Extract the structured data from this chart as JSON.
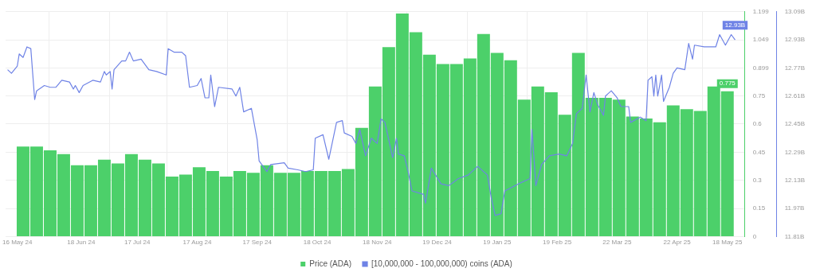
{
  "chart_data": {
    "type": "bar",
    "xlim": [
      "2024-05-10",
      "2025-05-27"
    ],
    "xticks": [
      {
        "value": "2024-05-16",
        "label": "16 May 24"
      },
      {
        "value": "2024-06-18",
        "label": "18 Jun 24"
      },
      {
        "value": "2024-07-17",
        "label": "17 Jul 24"
      },
      {
        "value": "2024-08-17",
        "label": "17 Aug 24"
      },
      {
        "value": "2024-09-17",
        "label": "17 Sep 24"
      },
      {
        "value": "2024-10-18",
        "label": "18 Oct 24"
      },
      {
        "value": "2024-11-18",
        "label": "18 Nov 24"
      },
      {
        "value": "2024-12-19",
        "label": "19 Dec 24"
      },
      {
        "value": "2025-01-19",
        "label": "19 Jan 25"
      },
      {
        "value": "2025-02-19",
        "label": "19 Feb 25"
      },
      {
        "value": "2025-03-22",
        "label": "22 Mar 25"
      },
      {
        "value": "2025-04-22",
        "label": "22 Apr 25"
      },
      {
        "value": "2025-05-18",
        "label": "18 May 25"
      }
    ],
    "ylim": [
      0,
      1.199
    ],
    "yticks": [
      0,
      0.15,
      0.3,
      0.45,
      0.6,
      0.75,
      0.899,
      1.049,
      1.199
    ],
    "y2lim": [
      11.81,
      13.09
    ],
    "y2ticks": [
      {
        "value": 11.81,
        "label": "11.81B"
      },
      {
        "value": 11.97,
        "label": "11.97B"
      },
      {
        "value": 12.13,
        "label": "12.13B"
      },
      {
        "value": 12.29,
        "label": "12.29B"
      },
      {
        "value": 12.45,
        "label": "12.45B"
      },
      {
        "value": 12.61,
        "label": "12.61B"
      },
      {
        "value": 12.77,
        "label": "12.77B"
      },
      {
        "value": 12.93,
        "label": "12.93B"
      },
      {
        "value": 13.09,
        "label": "13.09B"
      }
    ],
    "grid": true,
    "legend": "bottom",
    "series": [
      {
        "name": "Price (ADA)",
        "color": "#4cd06a",
        "x": [
          "2024-05-19",
          "2024-05-26",
          "2024-06-02",
          "2024-06-09",
          "2024-06-16",
          "2024-06-23",
          "2024-06-30",
          "2024-07-07",
          "2024-07-14",
          "2024-07-21",
          "2024-07-28",
          "2024-08-04",
          "2024-08-11",
          "2024-08-18",
          "2024-08-25",
          "2024-09-01",
          "2024-09-08",
          "2024-09-15",
          "2024-09-22",
          "2024-09-29",
          "2024-10-06",
          "2024-10-13",
          "2024-10-20",
          "2024-10-27",
          "2024-11-03",
          "2024-11-10",
          "2024-11-17",
          "2024-11-24",
          "2024-12-01",
          "2024-12-08",
          "2024-12-15",
          "2024-12-22",
          "2024-12-29",
          "2025-01-05",
          "2025-01-12",
          "2025-01-19",
          "2025-01-26",
          "2025-02-02",
          "2025-02-09",
          "2025-02-16",
          "2025-02-23",
          "2025-03-02",
          "2025-03-09",
          "2025-03-16",
          "2025-03-23",
          "2025-03-30",
          "2025-04-06",
          "2025-04-13",
          "2025-04-20",
          "2025-04-27",
          "2025-05-04",
          "2025-05-11",
          "2025-05-18"
        ],
        "values": [
          0.48,
          0.48,
          0.46,
          0.44,
          0.38,
          0.38,
          0.41,
          0.39,
          0.44,
          0.41,
          0.39,
          0.32,
          0.33,
          0.37,
          0.35,
          0.32,
          0.35,
          0.34,
          0.38,
          0.34,
          0.34,
          0.35,
          0.35,
          0.35,
          0.36,
          0.58,
          0.8,
          1.01,
          1.19,
          1.09,
          0.97,
          0.92,
          0.92,
          0.95,
          1.08,
          0.98,
          0.94,
          0.73,
          0.8,
          0.77,
          0.65,
          0.98,
          0.74,
          0.74,
          0.73,
          0.64,
          0.63,
          0.61,
          0.7,
          0.68,
          0.67,
          0.8,
          0.775
        ],
        "value_labels": [
          null,
          null,
          null,
          null,
          null,
          null,
          null,
          null,
          null,
          null,
          null,
          null,
          null,
          null,
          null,
          null,
          null,
          null,
          null,
          null,
          null,
          null,
          null,
          null,
          null,
          null,
          null,
          null,
          null,
          null,
          null,
          null,
          null,
          null,
          null,
          null,
          null,
          null,
          null,
          null,
          null,
          null,
          null,
          null,
          null,
          null,
          null,
          null,
          null,
          null,
          null,
          null,
          "0.775"
        ]
      },
      {
        "name": "[10,000,000 - 100,000,000) coins (ADA)",
        "type": "line",
        "axis": "y2",
        "color": "#6f83e6",
        "x": [
          "2024-05-11",
          "2024-05-13",
          "2024-05-16",
          "2024-05-17",
          "2024-05-19",
          "2024-05-21",
          "2024-05-23",
          "2024-05-25",
          "2024-05-26",
          "2024-05-30",
          "2024-06-02",
          "2024-06-05",
          "2024-06-08",
          "2024-06-12",
          "2024-06-14",
          "2024-06-15",
          "2024-06-17",
          "2024-06-19",
          "2024-06-24",
          "2024-06-28",
          "2024-06-30",
          "2024-07-01",
          "2024-07-03",
          "2024-07-04",
          "2024-07-05",
          "2024-07-09",
          "2024-07-11",
          "2024-07-13",
          "2024-07-15",
          "2024-07-19",
          "2024-07-23",
          "2024-07-27",
          "2024-08-01",
          "2024-08-02",
          "2024-08-05",
          "2024-08-09",
          "2024-08-11",
          "2024-08-13",
          "2024-08-17",
          "2024-08-19",
          "2024-08-21",
          "2024-08-23",
          "2024-08-24",
          "2024-08-26",
          "2024-08-28",
          "2024-09-04",
          "2024-09-06",
          "2024-09-08",
          "2024-09-10",
          "2024-09-14",
          "2024-09-17",
          "2024-09-18",
          "2024-09-22",
          "2024-09-24",
          "2024-10-01",
          "2024-10-03",
          "2024-10-08",
          "2024-10-12",
          "2024-10-16",
          "2024-10-17",
          "2024-10-21",
          "2024-10-24",
          "2024-10-28",
          "2024-10-31",
          "2024-11-01",
          "2024-11-05",
          "2024-11-07",
          "2024-11-09",
          "2024-11-12",
          "2024-11-15",
          "2024-11-18",
          "2024-11-20",
          "2024-11-22",
          "2024-11-24",
          "2024-11-26",
          "2024-11-28",
          "2024-11-29",
          "2024-12-02",
          "2024-12-04",
          "2024-12-06",
          "2024-12-12",
          "2024-12-13",
          "2024-12-16",
          "2024-12-21",
          "2024-12-25",
          "2024-12-30",
          "2025-01-04",
          "2025-01-09",
          "2025-01-14",
          "2025-01-16",
          "2025-01-18",
          "2025-01-21",
          "2025-01-23",
          "2025-01-30",
          "2025-02-03",
          "2025-02-05",
          "2025-02-06",
          "2025-02-07",
          "2025-02-08",
          "2025-02-11",
          "2025-02-15",
          "2025-02-20",
          "2025-02-24",
          "2025-02-27",
          "2025-03-01",
          "2025-03-04",
          "2025-03-06",
          "2025-03-08",
          "2025-03-10",
          "2025-03-12",
          "2025-03-15",
          "2025-03-16",
          "2025-03-19",
          "2025-03-22",
          "2025-03-24",
          "2025-03-28",
          "2025-03-29",
          "2025-04-03",
          "2025-04-06",
          "2025-04-07",
          "2025-04-09",
          "2025-04-10",
          "2025-04-11",
          "2025-04-12",
          "2025-04-14",
          "2025-04-15",
          "2025-04-18",
          "2025-04-20",
          "2025-04-22",
          "2025-04-26",
          "2025-04-28",
          "2025-04-30",
          "2025-05-01",
          "2025-05-06",
          "2025-05-09",
          "2025-05-12",
          "2025-05-14",
          "2025-05-17",
          "2025-05-20",
          "2025-05-22"
        ],
        "values": [
          12.76,
          12.74,
          12.78,
          12.85,
          12.83,
          12.89,
          12.88,
          12.59,
          12.64,
          12.67,
          12.66,
          12.66,
          12.7,
          12.69,
          12.65,
          12.67,
          12.63,
          12.67,
          12.7,
          12.69,
          12.75,
          12.73,
          12.75,
          12.65,
          12.76,
          12.81,
          12.81,
          12.86,
          12.81,
          12.82,
          12.76,
          12.75,
          12.73,
          12.88,
          12.86,
          12.86,
          12.84,
          12.66,
          12.67,
          12.71,
          12.6,
          12.6,
          12.73,
          12.55,
          12.66,
          12.65,
          12.61,
          12.66,
          12.52,
          12.54,
          12.36,
          12.24,
          12.18,
          12.22,
          12.23,
          12.2,
          12.19,
          12.18,
          12.19,
          12.37,
          12.39,
          12.25,
          12.46,
          12.47,
          12.4,
          12.38,
          12.34,
          12.42,
          12.27,
          12.37,
          12.34,
          12.48,
          12.46,
          12.36,
          12.26,
          12.37,
          12.28,
          12.27,
          12.18,
          12.07,
          12.05,
          12.0,
          12.2,
          12.11,
          12.1,
          12.14,
          12.16,
          12.21,
          12.16,
          12.03,
          11.93,
          11.94,
          12.07,
          12.11,
          12.13,
          12.14,
          12.42,
          12.27,
          12.1,
          12.22,
          12.27,
          12.28,
          12.27,
          12.34,
          12.51,
          12.54,
          12.73,
          12.52,
          12.63,
          12.56,
          12.5,
          12.61,
          12.64,
          12.6,
          12.55,
          12.55,
          12.46,
          12.49,
          12.47,
          12.7,
          12.72,
          12.61,
          12.73,
          12.61,
          12.73,
          12.58,
          12.66,
          12.74,
          12.77,
          12.76,
          12.91,
          12.82,
          12.9,
          12.89,
          12.89,
          12.89,
          12.96,
          12.9,
          12.96,
          12.93
        ],
        "value_labels": [
          null,
          null,
          null,
          null,
          null,
          null,
          null,
          null,
          null,
          null,
          null,
          null,
          null,
          null,
          null,
          null,
          null,
          null,
          null,
          null,
          null,
          null,
          null,
          null,
          null,
          null,
          null,
          null,
          null,
          null,
          null,
          null,
          null,
          null,
          null,
          null,
          null,
          null,
          null,
          null,
          null,
          null,
          null,
          null,
          null,
          null,
          null,
          null,
          null,
          null,
          null,
          null,
          null,
          null,
          null,
          null,
          null,
          null,
          null,
          null,
          null,
          null,
          null,
          null,
          null,
          null,
          null,
          null,
          null,
          null,
          null,
          null,
          null,
          null,
          null,
          null,
          null,
          null,
          null,
          null,
          null,
          null,
          null,
          null,
          null,
          null,
          null,
          null,
          null,
          null,
          null,
          null,
          null,
          null,
          null,
          null,
          null,
          null,
          null,
          null,
          null,
          null,
          null,
          null,
          null,
          null,
          null,
          null,
          null,
          null,
          null,
          null,
          null,
          null,
          null,
          null,
          null,
          null,
          null,
          null,
          null,
          null,
          null,
          null,
          null,
          null,
          null,
          null,
          null,
          null,
          null,
          null,
          null,
          null,
          null,
          null,
          null,
          null,
          null,
          "12.93B"
        ]
      }
    ]
  }
}
